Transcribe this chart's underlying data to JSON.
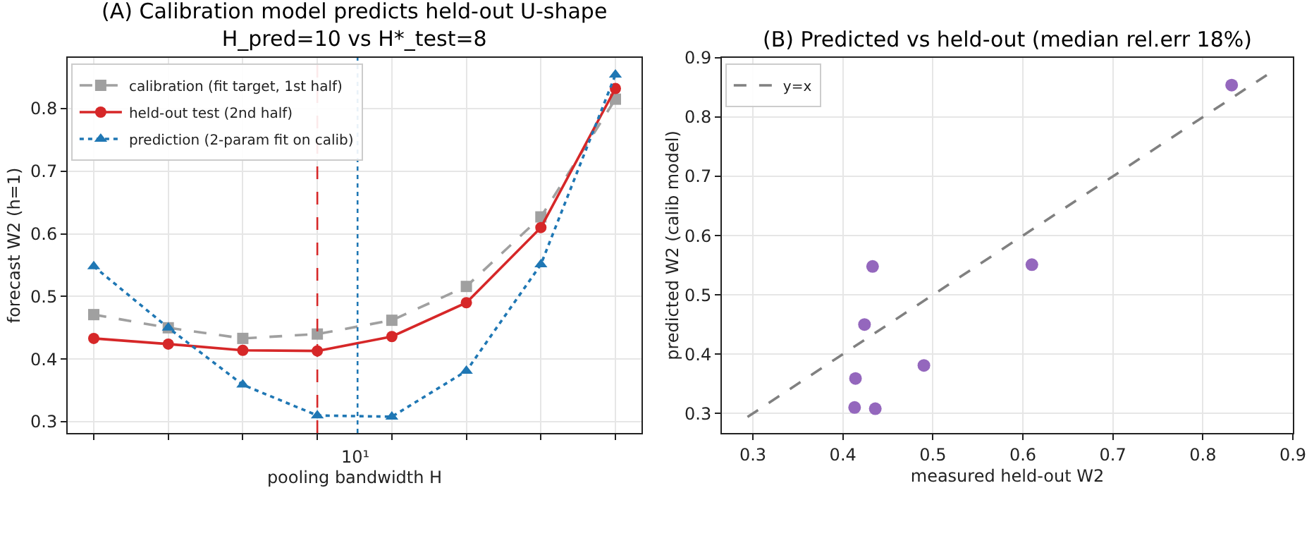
{
  "chart_data": [
    {
      "type": "line",
      "title": "(A) Calibration model predicts held-out U-shape\nH_pred=10 vs H*_test=8",
      "xlabel": "pooling bandwidth H",
      "ylabel": "forecast W2 (h=1)",
      "categories": [
        null,
        null,
        null,
        null,
        null,
        null,
        null,
        null
      ],
      "annotations": [
        "10¹"
      ],
      "ylim": [
        0.282,
        0.881
      ],
      "yticks": [
        0.3,
        0.4,
        0.5,
        0.6,
        0.7,
        0.8
      ],
      "grid": true,
      "legend": "top left",
      "series": [
        {
          "name": "calibration (fit target, 1st half)",
          "color": "#a0a0a0",
          "marker": "square",
          "line_style": "dashed",
          "values": [
            0.471,
            0.45,
            0.433,
            0.44,
            0.462,
            0.516,
            0.627,
            0.815
          ]
        },
        {
          "name": "held-out test (2nd half)",
          "color": "#d62728",
          "marker": "circle",
          "line_style": "solid",
          "values": [
            0.433,
            0.424,
            0.414,
            0.413,
            0.436,
            0.49,
            0.61,
            0.832
          ]
        },
        {
          "name": "prediction (2-param fit on calib)",
          "color": "#1f77b4",
          "marker": "triangle",
          "line_style": "dotted",
          "values": [
            0.548,
            0.45,
            0.359,
            0.31,
            0.308,
            0.381,
            0.551,
            0.854
          ]
        }
      ]
    },
    {
      "type": "scatter",
      "title": "(B) Predicted vs held-out (median rel.err 18%)",
      "xlabel": "measured held-out W2",
      "ylabel": "predicted W2 (calib model)",
      "xlim": [
        0.2655,
        0.9
      ],
      "xticks": [
        0.3,
        0.4,
        0.5,
        0.6,
        0.7,
        0.8,
        0.9
      ],
      "ylim": [
        0.267,
        0.9
      ],
      "yticks": [
        0.3,
        0.4,
        0.5,
        0.6,
        0.7,
        0.8,
        0.9
      ],
      "grid": true,
      "legend": "top left",
      "series": [
        {
          "type": "line",
          "name": "y=x",
          "color": "#808080",
          "marker": "none",
          "line_style": "dashed",
          "x": [
            0.294,
            0.871
          ],
          "values": [
            0.294,
            0.871
          ]
        },
        {
          "type": "scatter",
          "color": "#9467bd",
          "marker": "circle",
          "x": [
            0.433,
            0.424,
            0.414,
            0.413,
            0.436,
            0.49,
            0.61,
            0.832
          ],
          "values": [
            0.548,
            0.45,
            0.359,
            0.31,
            0.308,
            0.381,
            0.551,
            0.854
          ]
        }
      ]
    }
  ]
}
